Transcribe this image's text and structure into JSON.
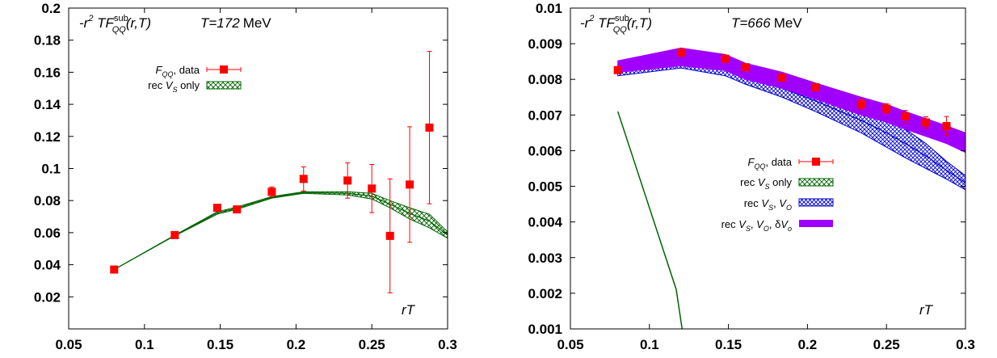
{
  "chart_data": [
    {
      "type": "line",
      "title": "-r² TF^sub_QQ̄(r,T)",
      "annotation": "T=172 MeV",
      "annotation_var": "T=172",
      "annotation_unit": "MeV",
      "xlabel": "rT",
      "ylabel": "-r² TF^sub_QQ̄(r,T)",
      "xlim": [
        0.05,
        0.3
      ],
      "ylim": [
        0.0,
        0.2
      ],
      "xticks": [
        "0.05",
        "0.1",
        "0.15",
        "0.2",
        "0.25",
        "0.3"
      ],
      "yticks": [
        "0.02",
        "0.04",
        "0.06",
        "0.08",
        "0.1",
        "0.12",
        "0.14",
        "0.16",
        "0.18",
        "0.2"
      ],
      "grid": false,
      "legend_position": "top-left",
      "colors": {
        "data": "#ff0000",
        "vs": "#006400"
      },
      "series": [
        {
          "name": "F_QQ̄, data",
          "kind": "points_with_errorbars",
          "x": [
            0.08,
            0.12,
            0.148,
            0.161,
            0.184,
            0.205,
            0.234,
            0.25,
            0.262,
            0.275,
            0.288
          ],
          "y": [
            0.037,
            0.0585,
            0.0755,
            0.0745,
            0.0855,
            0.0935,
            0.0925,
            0.0875,
            0.058,
            0.09,
            0.1255
          ],
          "err": [
            0.001,
            0.0015,
            0.002,
            0.002,
            0.003,
            0.0075,
            0.011,
            0.015,
            0.0355,
            0.036,
            0.0475
          ]
        },
        {
          "name": "rec V_S only",
          "kind": "band",
          "x": [
            0.08,
            0.12,
            0.148,
            0.161,
            0.184,
            0.205,
            0.234,
            0.25,
            0.262,
            0.275,
            0.288,
            0.3
          ],
          "lower": [
            0.037,
            0.058,
            0.0715,
            0.0745,
            0.0815,
            0.0845,
            0.0835,
            0.081,
            0.0755,
            0.0685,
            0.063,
            0.0565
          ],
          "upper": [
            0.037,
            0.0585,
            0.073,
            0.076,
            0.0825,
            0.0855,
            0.0855,
            0.0845,
            0.08,
            0.0755,
            0.0715,
            0.0605
          ]
        }
      ],
      "legend": [
        "F_QQ̄, data",
        "rec V_S only"
      ]
    },
    {
      "type": "line",
      "title": "-r² TF^sub_QQ̄(r,T)",
      "annotation": "T=666 MeV",
      "annotation_var": "T=666",
      "annotation_unit": "MeV",
      "xlabel": "rT",
      "ylabel": "-r² TF^sub_QQ̄(r,T)",
      "xlim": [
        0.05,
        0.3
      ],
      "ylim": [
        0.001,
        0.01
      ],
      "xticks": [
        "0.05",
        "0.1",
        "0.15",
        "0.2",
        "0.25",
        "0.3"
      ],
      "yticks": [
        "0.001",
        "0.002",
        "0.003",
        "0.004",
        "0.005",
        "0.006",
        "0.007",
        "0.008",
        "0.009",
        "0.01"
      ],
      "grid": false,
      "legend_position": "center-right",
      "colors": {
        "data": "#ff0000",
        "vs": "#006400",
        "vsvo": "#0000cc",
        "full": "#a000ff"
      },
      "series": [
        {
          "name": "F_QQ̄, data",
          "kind": "points_with_errorbars",
          "x": [
            0.08,
            0.12,
            0.148,
            0.161,
            0.184,
            0.205,
            0.234,
            0.25,
            0.262,
            0.275,
            0.288
          ],
          "y": [
            0.00826,
            0.00875,
            0.00858,
            0.00834,
            0.00805,
            0.00778,
            0.0073,
            0.00718,
            0.00696,
            0.00679,
            0.00669
          ],
          "err": [
            5e-05,
            6e-05,
            6e-05,
            7e-05,
            7e-05,
            0.0001,
            0.00015,
            0.00014,
            0.00017,
            0.00016,
            0.00027
          ]
        },
        {
          "name": "rec V_S only",
          "kind": "line",
          "x": [
            0.08,
            0.117,
            0.124
          ],
          "y": [
            0.0071,
            0.0021,
            0.0
          ]
        },
        {
          "name": "rec V_S, V_O",
          "kind": "band",
          "x": [
            0.08,
            0.12,
            0.148,
            0.161,
            0.184,
            0.205,
            0.234,
            0.25,
            0.262,
            0.275,
            0.288,
            0.3
          ],
          "lower": [
            0.0081,
            0.00832,
            0.0081,
            0.00786,
            0.0075,
            0.0071,
            0.0065,
            0.0061,
            0.0058,
            0.0055,
            0.0052,
            0.0049
          ],
          "upper": [
            0.0084,
            0.0087,
            0.0085,
            0.0083,
            0.008,
            0.0077,
            0.0072,
            0.0069,
            0.0066,
            0.0062,
            0.0057,
            0.0053
          ]
        },
        {
          "name": "rec V_S, V_O, δV_o",
          "kind": "band",
          "x": [
            0.08,
            0.12,
            0.148,
            0.161,
            0.184,
            0.205,
            0.234,
            0.25,
            0.262,
            0.275,
            0.288,
            0.3
          ],
          "lower": [
            0.0082,
            0.00838,
            0.00825,
            0.008,
            0.00775,
            0.00745,
            0.007,
            0.0068,
            0.0066,
            0.0064,
            0.0062,
            0.00595
          ],
          "upper": [
            0.00852,
            0.00888,
            0.0087,
            0.00845,
            0.0082,
            0.0079,
            0.0075,
            0.0073,
            0.0071,
            0.0069,
            0.0067,
            0.0065
          ]
        }
      ],
      "legend": [
        "F_QQ̄, data",
        "rec V_S only",
        "rec V_S, V_O",
        "rec V_S, V_O, δV_o"
      ]
    }
  ]
}
